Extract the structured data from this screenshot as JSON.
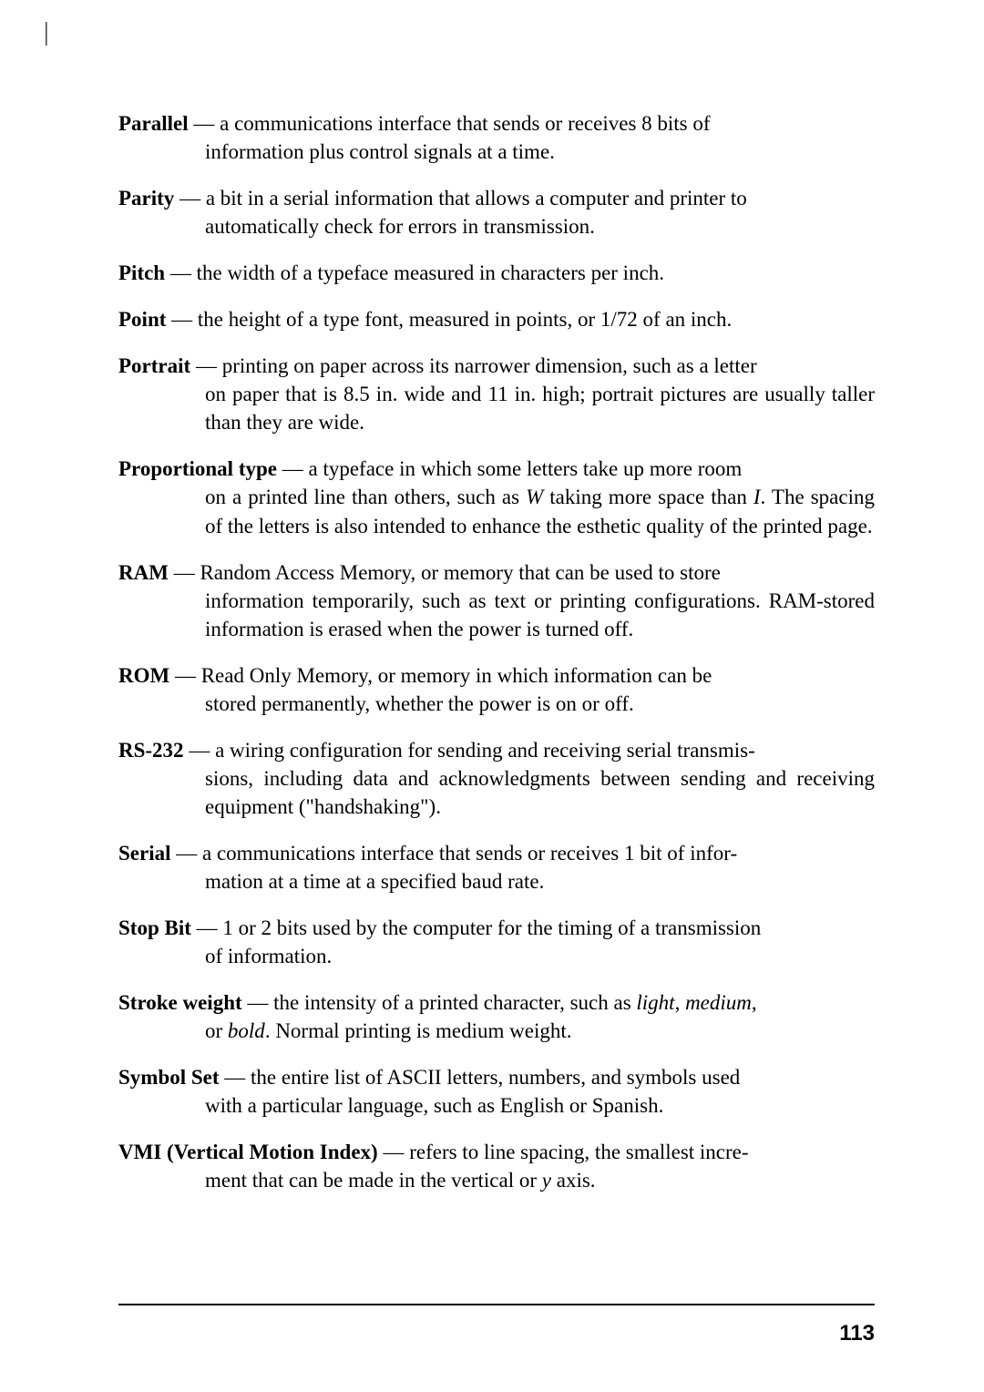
{
  "page_number": "113",
  "binding_mark": "|",
  "entries": [
    {
      "term": "Parallel",
      "def_first": " — a communications interface that sends or receives 8 bits of",
      "def_rest": "information plus control signals at a time."
    },
    {
      "term": "Parity",
      "def_first": " — a bit in a serial information that allows a computer and printer to",
      "def_rest": "automatically check for errors in transmission."
    },
    {
      "term": "Pitch",
      "def_first": " — the width of a typeface measured in characters per inch.",
      "def_rest": ""
    },
    {
      "term": "Point",
      "def_first": " — the height of a type font, measured in points, or 1/72 of an inch.",
      "def_rest": ""
    },
    {
      "term": "Portrait",
      "def_first": " — printing on paper across its narrower dimension, such as a letter",
      "def_rest": "on paper that is 8.5 in. wide and 11 in. high; portrait pictures are usually taller than they are wide."
    },
    {
      "term": "Proportional type",
      "def_first": " — a typeface in which some letters take up more room",
      "def_rest_html": "on a printed line than others, such as <i>W</i> taking more space than <i>I</i>. The spacing of the letters is also intended to enhance the esthetic quality of the printed page."
    },
    {
      "term": "RAM",
      "def_first": " — Random Access Memory, or memory that can be used to store",
      "def_rest": "information temporarily, such as text or printing configurations. RAM-stored information is erased when the power is turned off."
    },
    {
      "term": "ROM",
      "def_first": " — Read Only Memory, or memory in which information can be",
      "def_rest": "stored permanently, whether the power is on or off."
    },
    {
      "term": "RS-232",
      "def_first": " — a wiring configuration for sending and receiving serial transmis-",
      "def_rest": "sions, including data and acknowledgments between sending and receiving equipment (\"handshaking\")."
    },
    {
      "term": "Serial",
      "def_first": " — a communications interface that sends or receives 1 bit of infor-",
      "def_rest": "mation at a time at a specified baud rate."
    },
    {
      "term": "Stop Bit",
      "def_first": " — 1 or 2 bits used by the computer for the timing of a transmission",
      "def_rest": "of information."
    },
    {
      "term": "Stroke weight",
      "def_first_html": " — the intensity of a printed character, such as <i>light</i>, <i>medium</i>,",
      "def_rest_html": "or <i>bold</i>. Normal printing is medium weight."
    },
    {
      "term": "Symbol Set",
      "def_first": " — the entire list of ASCII letters, numbers, and symbols used",
      "def_rest": "with a particular language, such as English or Spanish."
    },
    {
      "term": "VMI (Vertical Motion Index)",
      "def_first": " — refers to line spacing, the smallest incre-",
      "def_rest_html": "ment that can be made in the vertical or <i>y</i> axis."
    }
  ]
}
